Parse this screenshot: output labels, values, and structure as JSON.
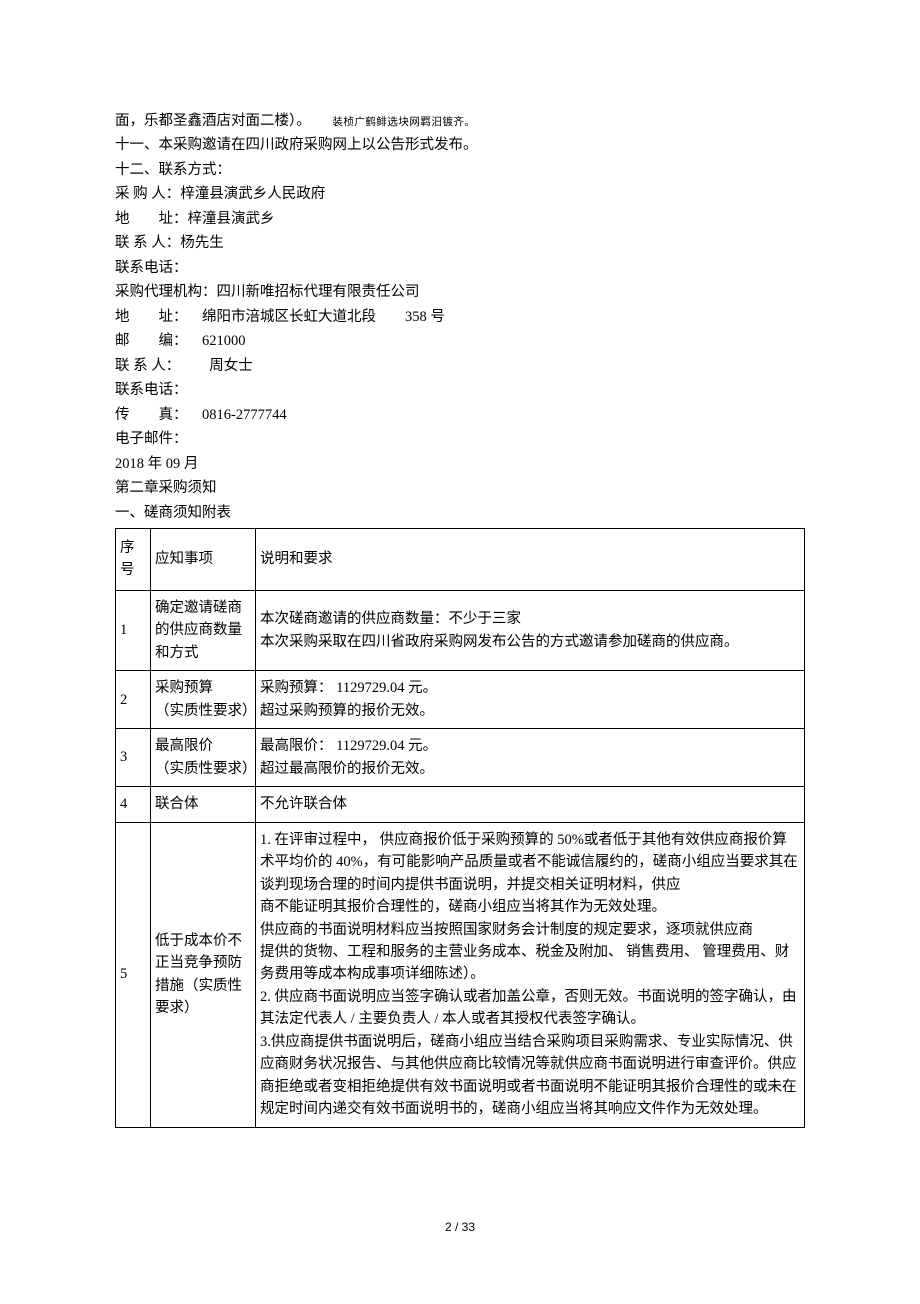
{
  "body": {
    "line1_prefix": "面，乐都圣鑫酒店对面二楼）。",
    "line1_note": "装桢广鹤鲱选块网羁汨镀齐。",
    "line2": "十一、本采购邀请在四川政府采购网上以公告形式发布。",
    "line3": "十二、联系方式：",
    "buyer_label": "采 购 人：",
    "buyer_value": "梓潼县演武乡人民政府",
    "buyer_addr_label": "地　　址：",
    "buyer_addr_value": "梓潼县演武乡",
    "buyer_contact_label": "联 系 人：",
    "buyer_contact_value": "杨先生",
    "buyer_phone_label": "联系电话：",
    "agency_label": "采购代理机构：",
    "agency_value": "四川新唯招标代理有限责任公司",
    "agency_addr_label": "地　　址：",
    "agency_addr_value": "　绵阳市涪城区长虹大道北段　　358 号",
    "agency_zip_label": "邮　　编：",
    "agency_zip_value": "　621000",
    "agency_contact_label": "联 系 人：",
    "agency_contact_value": "　　周女士",
    "agency_phone_label": "联系电话：",
    "agency_fax_label": "传　　真：",
    "agency_fax_value": "　0816-2777744",
    "agency_email_label": "电子邮件：",
    "date": "2018 年 09 月",
    "chapter": "第二章采购须知",
    "section": "一、磋商须知附表"
  },
  "table": {
    "header": {
      "c1": "序号",
      "c2": "应知事项",
      "c3": "说明和要求"
    },
    "rows": [
      {
        "seq": "1",
        "item": "确定邀请磋商的供应商数量和方式",
        "desc": "本次磋商邀请的供应商数量：不少于三家\n本次采购采取在四川省政府采购网发布公告的方式邀请参加磋商的供应商。"
      },
      {
        "seq": "2",
        "item": "采购预算\n（实质性要求）",
        "desc": "采购预算： 1129729.04 元。\n超过采购预算的报价无效。"
      },
      {
        "seq": "3",
        "item": "最高限价\n（实质性要求）",
        "desc": "最高限价： 1129729.04 元。\n超过最高限价的报价无效。"
      },
      {
        "seq": "4",
        "item": "联合体",
        "desc": "不允许联合体"
      },
      {
        "seq": "5",
        "item": "低于成本价不正当竞争预防措施（实质性要求）",
        "desc": "1. 在评审过程中， 供应商报价低于采购预算的 50%或者低于其他有效供应商报价算术平均价的 40%，有可能影响产品质量或者不能诚信履约的，磋商小组应当要求其在谈判现场合理的时间内提供书面说明，并提交相关证明材料，供应\n商不能证明其报价合理性的，磋商小组应当将其作为无效处理。\n供应商的书面说明材料应当按照国家财务会计制度的规定要求，逐项就供应商\n提供的货物、工程和服务的主营业务成本、税金及附加、 销售费用、 管理费用、财务费用等成本构成事项详细陈述）。\n2. 供应商书面说明应当签字确认或者加盖公章，否则无效。书面说明的签字确认，由其法定代表人 / 主要负责人 / 本人或者其授权代表签字确认。\n3.供应商提供书面说明后，磋商小组应当结合采购项目采购需求、专业实际情况、供应商财务状况报告、与其他供应商比较情况等就供应商书面说明进行审查评价。供应商拒绝或者变相拒绝提供有效书面说明或者书面说明不能证明其报价合理性的或未在规定时间内递交有效书面说明书的，磋商小组应当将其响应文件作为无效处理。"
      }
    ]
  },
  "footer": "2 / 33"
}
